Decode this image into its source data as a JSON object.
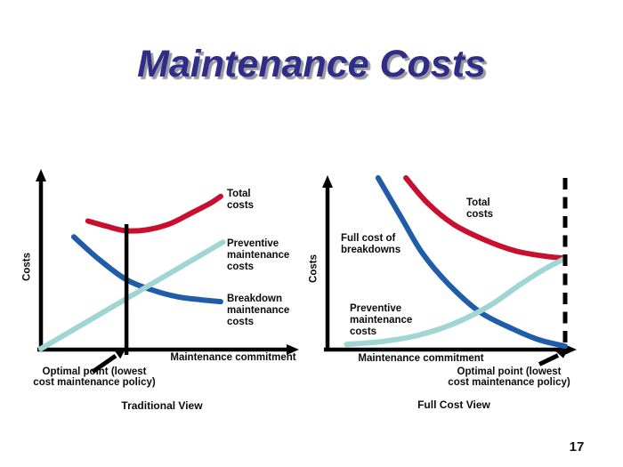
{
  "slide": {
    "title": "Maintenance Costs",
    "title_color": "#2f2d87",
    "page_number": "17"
  },
  "colors": {
    "total_costs": "#c8102e",
    "breakdown_costs": "#1f5ca9",
    "preventive_costs": "#9fd6d3",
    "axis": "#000000"
  },
  "charts": [
    {
      "ylabel": "Costs",
      "xlabel": "Maintenance commitment",
      "caption": "Traditional View",
      "labels": {
        "total": "Total\ncosts",
        "preventive": "Preventive\nmaintenance\ncosts",
        "breakdown": "Breakdown\nmaintenance\ncosts"
      },
      "optimal_label": "Optimal point (lowest\ncost maintenance policy)"
    },
    {
      "ylabel": "Costs",
      "xlabel": "Maintenance commitment",
      "caption": "Full Cost View",
      "labels": {
        "total": "Total\ncosts",
        "full_breakdown": "Full cost of\nbreakdowns",
        "preventive": "Preventive\nmaintenance\ncosts"
      },
      "optimal_label": "Optimal point (lowest\ncost maintenance policy)"
    }
  ],
  "chart_data": [
    {
      "type": "line",
      "title": "Traditional View",
      "xlabel": "Maintenance commitment",
      "ylabel": "Costs",
      "axes_numeric": false,
      "series": [
        {
          "name": "Total costs",
          "color": "#c8102e",
          "points": [
            [
              0.2,
              0.73
            ],
            [
              0.28,
              0.7
            ],
            [
              0.36,
              0.675
            ],
            [
              0.45,
              0.68
            ],
            [
              0.55,
              0.715
            ],
            [
              0.64,
              0.775
            ],
            [
              0.72,
              0.83
            ],
            [
              0.765,
              0.87
            ]
          ]
        },
        {
          "name": "Breakdown maintenance costs",
          "color": "#1f5ca9",
          "points": [
            [
              0.14,
              0.64
            ],
            [
              0.24,
              0.52
            ],
            [
              0.36,
              0.4
            ],
            [
              0.47,
              0.34
            ],
            [
              0.58,
              0.3
            ],
            [
              0.68,
              0.283
            ],
            [
              0.765,
              0.272
            ]
          ]
        },
        {
          "name": "Preventive maintenance costs",
          "color": "#9fd6d3",
          "points": [
            [
              0.0,
              0.005
            ],
            [
              0.775,
              0.61
            ]
          ]
        }
      ],
      "optimal_x": 0.364,
      "annotation": "Optimal point (lowest cost maintenance policy)"
    },
    {
      "type": "line",
      "title": "Full Cost View",
      "xlabel": "Maintenance commitment",
      "ylabel": "Costs",
      "axes_numeric": false,
      "series": [
        {
          "name": "Total costs",
          "color": "#c8102e",
          "points": [
            [
              0.33,
              1.0
            ],
            [
              0.42,
              0.855
            ],
            [
              0.53,
              0.73
            ],
            [
              0.66,
              0.64
            ],
            [
              0.79,
              0.575
            ],
            [
              0.91,
              0.545
            ],
            [
              0.99,
              0.533
            ]
          ]
        },
        {
          "name": "Full cost of breakdowns",
          "color": "#1f5ca9",
          "points": [
            [
              0.213,
              1.0
            ],
            [
              0.31,
              0.77
            ],
            [
              0.4,
              0.56
            ],
            [
              0.51,
              0.38
            ],
            [
              0.64,
              0.22
            ],
            [
              0.78,
              0.12
            ],
            [
              0.89,
              0.057
            ],
            [
              1.0,
              0.02
            ]
          ]
        },
        {
          "name": "Preventive maintenance costs",
          "color": "#9fd6d3",
          "points": [
            [
              0.08,
              0.03
            ],
            [
              0.23,
              0.047
            ],
            [
              0.38,
              0.083
            ],
            [
              0.53,
              0.15
            ],
            [
              0.68,
              0.254
            ],
            [
              0.81,
              0.378
            ],
            [
              0.91,
              0.466
            ],
            [
              0.995,
              0.528
            ]
          ]
        }
      ],
      "optimal_x": 1.0,
      "annotation": "Optimal point (lowest cost maintenance policy)"
    }
  ]
}
